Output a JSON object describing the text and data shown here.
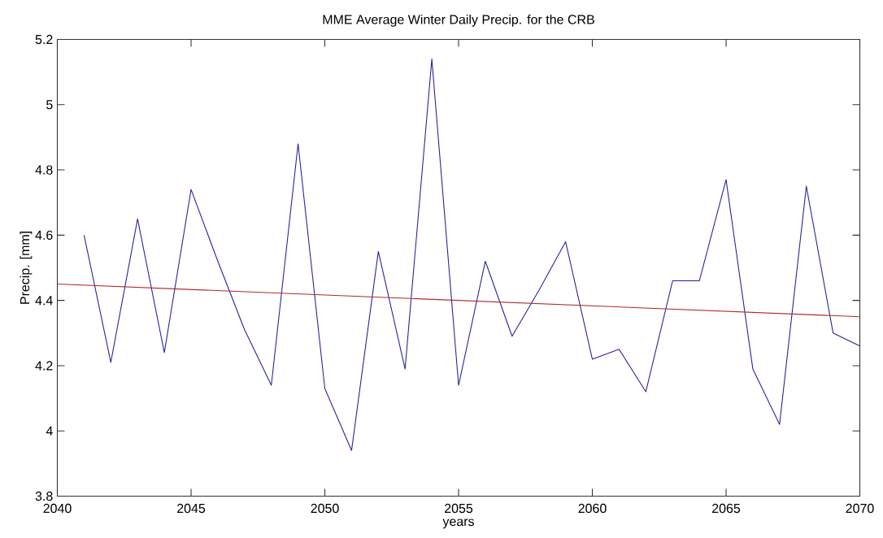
{
  "chart_data": {
    "type": "line",
    "title": "MME Average Winter Daily Precip. for the CRB",
    "xlabel": "years",
    "ylabel": "Precip. [mm]",
    "x": [
      2041,
      2042,
      2043,
      2044,
      2045,
      2046,
      2047,
      2048,
      2049,
      2050,
      2051,
      2052,
      2053,
      2054,
      2055,
      2056,
      2057,
      2058,
      2059,
      2060,
      2061,
      2062,
      2063,
      2064,
      2065,
      2066,
      2067,
      2068,
      2069,
      2070
    ],
    "series": [
      {
        "color": "#22229a",
        "values": [
          4.6,
          4.21,
          4.65,
          4.24,
          4.74,
          4.52,
          4.31,
          4.14,
          4.88,
          4.13,
          3.94,
          4.55,
          4.19,
          5.14,
          4.14,
          4.52,
          4.29,
          4.43,
          4.58,
          4.22,
          4.25,
          4.12,
          4.46,
          4.46,
          4.77,
          4.19,
          4.02,
          4.75,
          4.3,
          4.26
        ]
      },
      {
        "type": "line",
        "color": "#b02a2a",
        "x": [
          2040,
          2070
        ],
        "values": [
          4.45,
          4.35
        ]
      }
    ],
    "xlim": [
      2040,
      2070
    ],
    "ylim": [
      3.8,
      5.2
    ],
    "xticks": [
      2040,
      2045,
      2050,
      2055,
      2060,
      2065,
      2070
    ],
    "yticks": [
      3.8,
      4,
      4.2,
      4.4,
      4.6,
      4.8,
      5,
      5.2
    ]
  }
}
